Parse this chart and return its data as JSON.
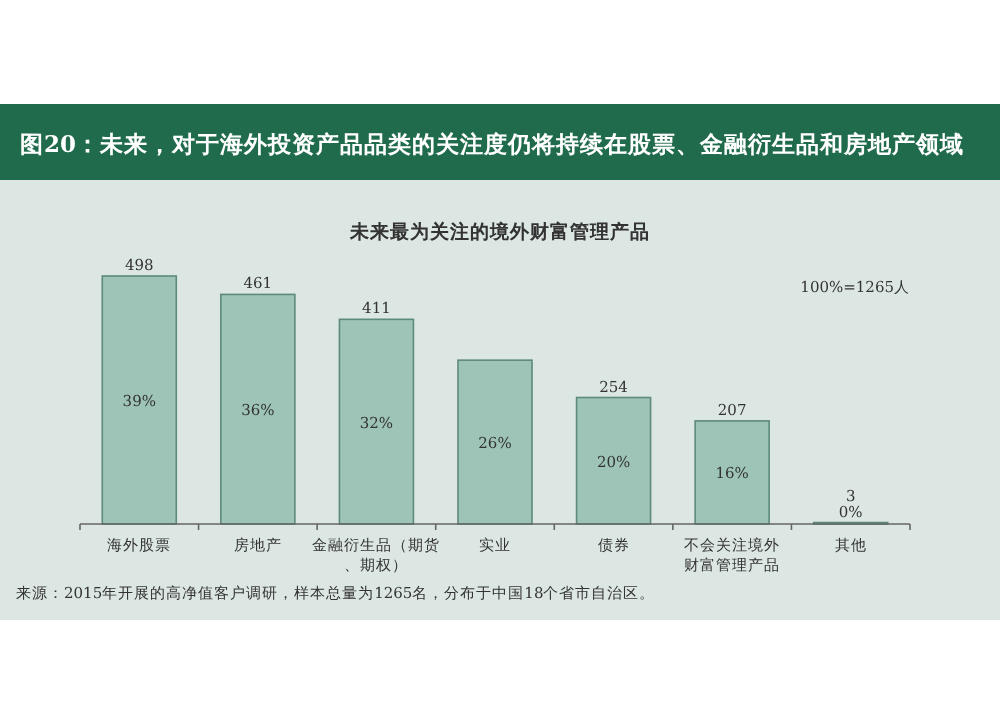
{
  "chart_data": {
    "type": "bar",
    "title": "图20：未来，对于海外投资产品品类的关注度仍将持续在股票、金融衍生品和房地产领域",
    "subtitle": "未来最为关注的境外财富管理产品",
    "categories": [
      "海外股票",
      "房地产",
      "金融衍生品（期货、期权）",
      "实业",
      "债券",
      "不会关注境外财富管理产品",
      "其他"
    ],
    "series": [
      {
        "color": "#9dc4b6",
        "values": [
          498,
          461,
          411,
          329,
          254,
          207,
          3
        ],
        "value_labels": [
          "498",
          "461",
          "411",
          null,
          "254",
          "207",
          "3"
        ]
      }
    ],
    "ylim": [
      0,
      500
    ],
    "annotations": [
      "100%=1265人",
      "39%",
      "36%",
      "32%",
      "26%",
      "20%",
      "16%",
      "0%",
      "来源：2015年开展的高净值客户调研，样本总量为1265名，分布于中国18个省市自治区。"
    ]
  }
}
